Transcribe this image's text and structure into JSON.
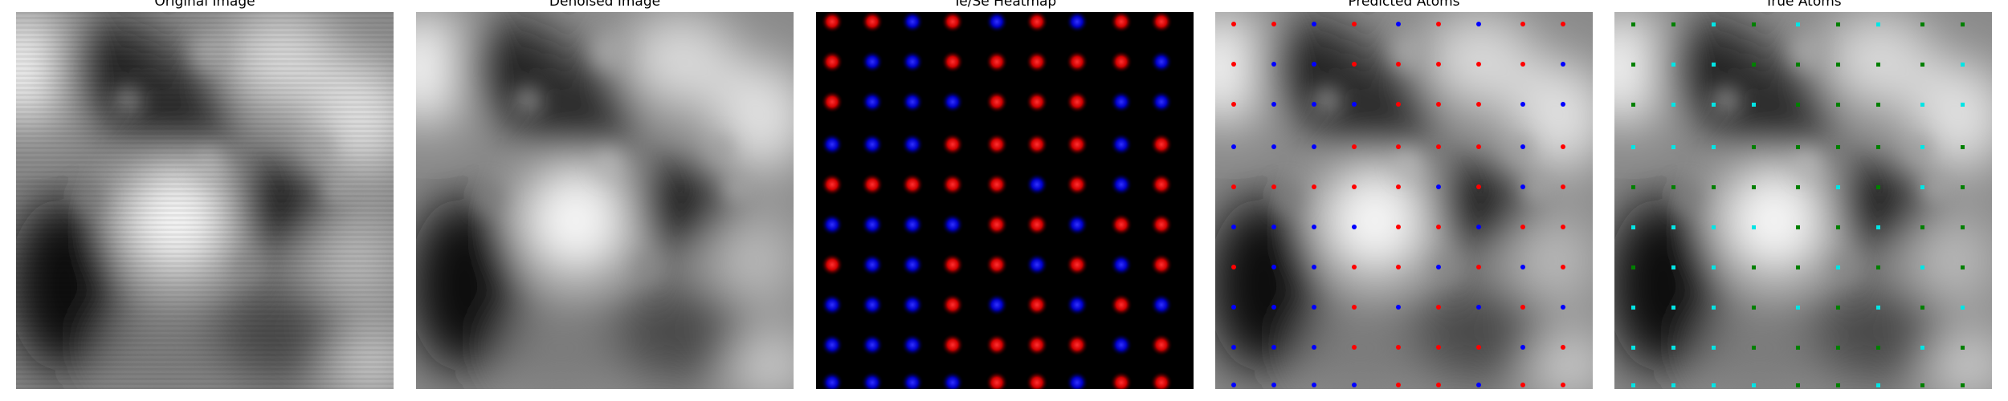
{
  "panels": [
    {
      "id": "original",
      "title": "Original Image"
    },
    {
      "id": "denoised",
      "title": "Denoised Image"
    },
    {
      "id": "heatmap",
      "title": "Te/Se Heatmap"
    },
    {
      "id": "predicted",
      "title": "Predicted Atoms"
    },
    {
      "id": "true",
      "title": "True Atoms"
    }
  ],
  "colors": {
    "te": "#ff0000",
    "se": "#0000ff",
    "true_a": "#008000",
    "true_b": "#00e5e5",
    "heatmap_background": "#000000"
  }
}
